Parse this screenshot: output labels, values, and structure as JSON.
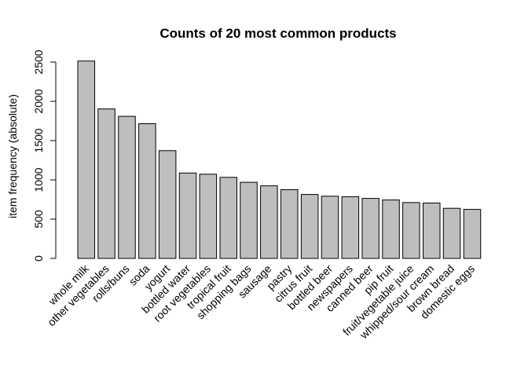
{
  "chart_data": {
    "type": "bar",
    "title": "Counts of 20 most common products",
    "xlabel": "",
    "ylabel": "item frequency (absolute)",
    "ylim": [
      0,
      2500
    ],
    "yticks": [
      0,
      500,
      1000,
      1500,
      2000,
      2500
    ],
    "grid": false,
    "bar_color": "#bebebe",
    "border_color": "#000000",
    "categories": [
      "whole milk",
      "other vegetables",
      "rolls/buns",
      "soda",
      "yogurt",
      "bottled water",
      "root vegetables",
      "tropical fruit",
      "shopping bags",
      "sausage",
      "pastry",
      "citrus fruit",
      "bottled beer",
      "newspapers",
      "canned beer",
      "pip fruit",
      "fruit/vegetable juice",
      "whipped/sour cream",
      "brown bread",
      "domestic eggs"
    ],
    "values": [
      2513,
      1903,
      1809,
      1715,
      1372,
      1087,
      1072,
      1032,
      969,
      924,
      875,
      814,
      792,
      785,
      764,
      744,
      711,
      705,
      638,
      624
    ]
  }
}
